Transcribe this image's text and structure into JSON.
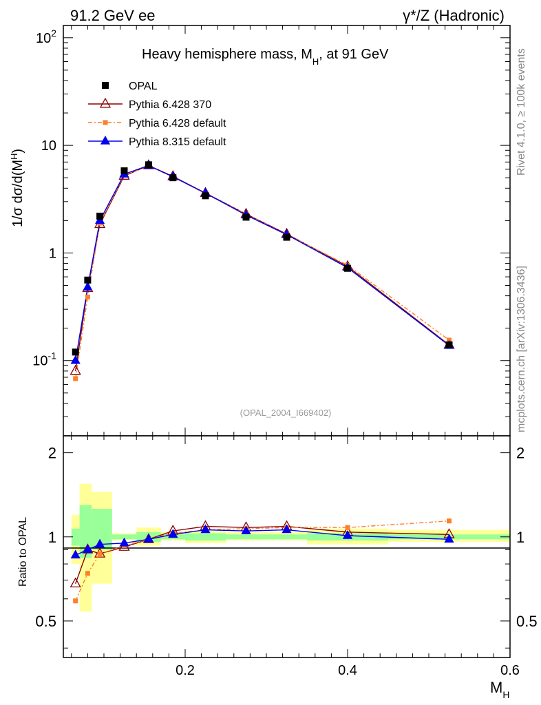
{
  "header": {
    "left": "91.2 GeV ee",
    "right": "γ*/Z (Hadronic)"
  },
  "side": {
    "rivet": "Rivet 4.1.0, ≥ 100k events",
    "site": "mcplots.cern.ch [arXiv:1306.3436]"
  },
  "colors": {
    "opal": "#000000",
    "py6_370": "#8b0000",
    "py6_default": "#ff7f27",
    "py8": "#0000ee",
    "band_inner": "#99ff99",
    "band_outer": "#ffff99"
  },
  "chart_data": [
    {
      "type": "line",
      "title": "Heavy hemisphere mass, M_H, at 91 GeV",
      "title_main": "Heavy hemisphere mass, M",
      "title_sub": "H",
      "title_tail": ", at 91 GeV",
      "ylabel": "1/σ  dσ/d(M_H)",
      "yscale": "log",
      "xlim": [
        0.05,
        0.6
      ],
      "ylim": [
        0.02,
        130
      ],
      "x_ticks": [
        0.2,
        0.4,
        0.6
      ],
      "y_tick_labels": [
        "10^-1",
        "1",
        "10",
        "10^2"
      ],
      "analysis_id": "(OPAL_2004_I669402)",
      "legend_position": "top-left",
      "x": [
        0.065,
        0.08,
        0.095,
        0.125,
        0.155,
        0.185,
        0.225,
        0.275,
        0.325,
        0.4,
        0.525
      ],
      "series": [
        {
          "name": "OPAL",
          "marker": "square-filled",
          "values": [
            0.12,
            0.56,
            2.2,
            5.8,
            6.6,
            5.0,
            3.4,
            2.15,
            1.4,
            0.72,
            0.14
          ]
        },
        {
          "name": "Pythia 6.428 370",
          "marker": "triangle-open",
          "values": [
            0.08,
            0.47,
            1.85,
            5.2,
            6.5,
            5.15,
            3.6,
            2.3,
            1.5,
            0.75,
            0.14
          ]
        },
        {
          "name": "Pythia 6.428 default",
          "marker": "square-small",
          "values": [
            0.068,
            0.39,
            1.9,
            5.3,
            6.4,
            5.1,
            3.55,
            2.3,
            1.48,
            0.77,
            0.155
          ]
        },
        {
          "name": "Pythia 8.315 default",
          "marker": "triangle-filled",
          "values": [
            0.1,
            0.48,
            2.0,
            5.4,
            6.5,
            5.1,
            3.6,
            2.25,
            1.48,
            0.73,
            0.138
          ]
        }
      ]
    },
    {
      "type": "line",
      "title": "",
      "ylabel": "Ratio to OPAL",
      "xlabel": "M_H",
      "xlabel_main": "M",
      "xlabel_sub": "H",
      "xlim": [
        0.05,
        0.6
      ],
      "ylim": [
        0.37,
        2.3
      ],
      "y_ticks": [
        0.5,
        1,
        2
      ],
      "x_ticks": [
        0.2,
        0.4,
        0.6
      ],
      "x": [
        0.065,
        0.08,
        0.095,
        0.125,
        0.155,
        0.185,
        0.225,
        0.275,
        0.325,
        0.4,
        0.525
      ],
      "bins": [
        [
          0.06,
          0.07
        ],
        [
          0.07,
          0.085
        ],
        [
          0.085,
          0.11
        ],
        [
          0.11,
          0.14
        ],
        [
          0.14,
          0.17
        ],
        [
          0.17,
          0.2
        ],
        [
          0.2,
          0.25
        ],
        [
          0.25,
          0.3
        ],
        [
          0.3,
          0.35
        ],
        [
          0.35,
          0.45
        ],
        [
          0.45,
          0.6
        ]
      ],
      "bands": {
        "inner_low": [
          0.93,
          0.84,
          0.9,
          0.98,
          0.96,
          0.98,
          0.97,
          0.98,
          0.98,
          0.97,
          0.98
        ],
        "inner_high": [
          1.07,
          1.3,
          1.26,
          1.02,
          1.04,
          1.02,
          1.03,
          1.02,
          1.02,
          1.03,
          1.02
        ],
        "outer_low": [
          0.8,
          0.54,
          0.68,
          0.97,
          0.93,
          0.97,
          0.95,
          0.97,
          0.97,
          0.94,
          0.96
        ],
        "outer_high": [
          1.2,
          1.55,
          1.45,
          1.03,
          1.08,
          1.04,
          1.05,
          1.04,
          1.04,
          1.07,
          1.06
        ]
      },
      "series": [
        {
          "name": "Pythia 6.428 370",
          "values": [
            0.68,
            0.9,
            0.87,
            0.92,
            0.98,
            1.05,
            1.09,
            1.08,
            1.09,
            1.04,
            1.02
          ]
        },
        {
          "name": "Pythia 6.428 default",
          "values": [
            0.59,
            0.74,
            0.87,
            0.93,
            0.98,
            1.03,
            1.06,
            1.07,
            1.08,
            1.08,
            1.14
          ]
        },
        {
          "name": "Pythia 8.315 default",
          "values": [
            0.86,
            0.9,
            0.94,
            0.95,
            0.98,
            1.02,
            1.06,
            1.05,
            1.06,
            1.01,
            0.98
          ]
        }
      ]
    }
  ]
}
